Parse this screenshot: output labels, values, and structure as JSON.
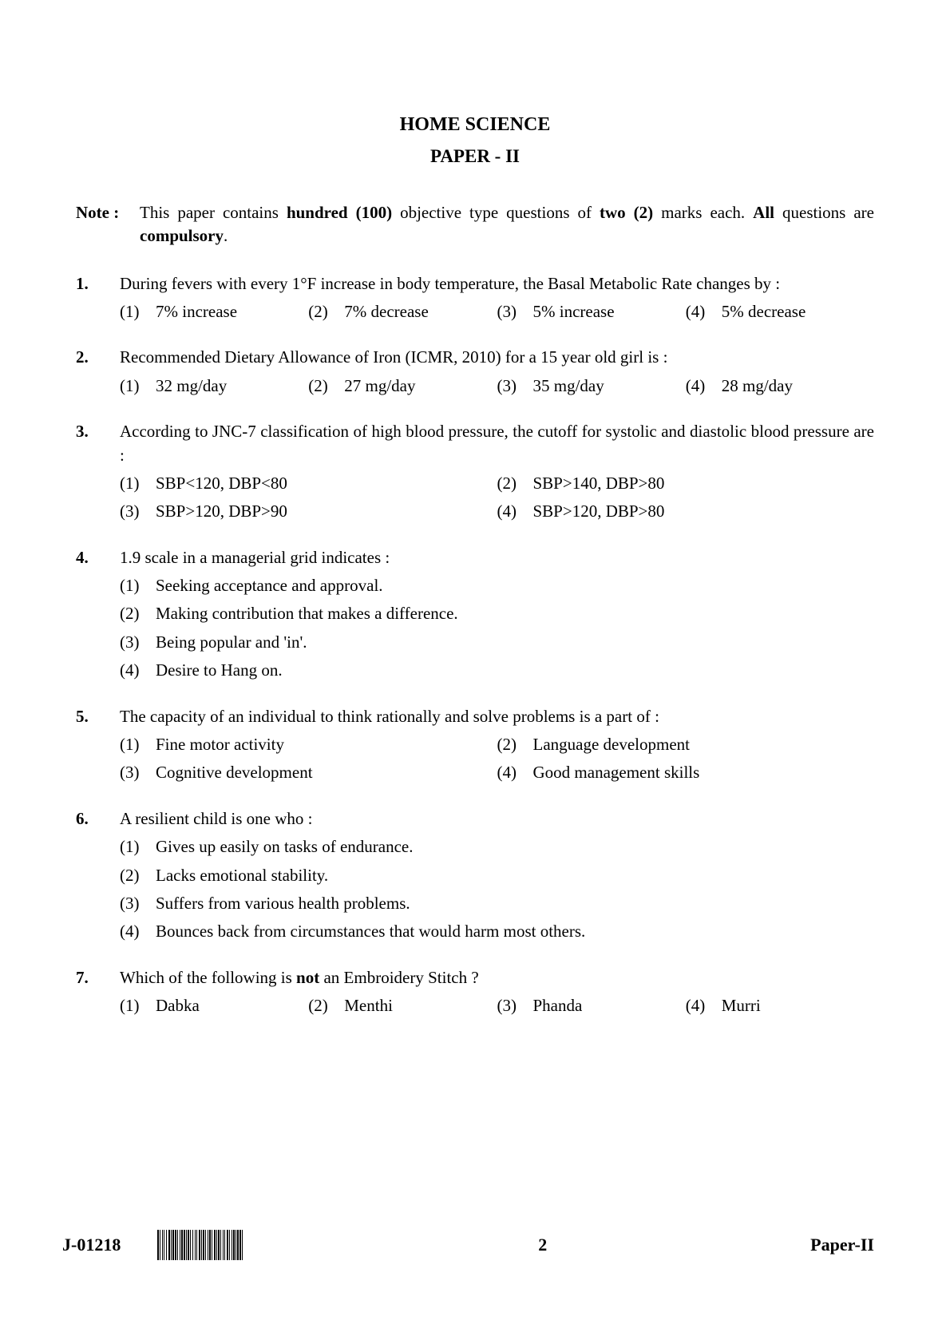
{
  "header": {
    "title": "HOME SCIENCE",
    "subtitle": "PAPER - II"
  },
  "note": {
    "label": "Note :",
    "parts": [
      {
        "text": "This paper contains ",
        "bold": false
      },
      {
        "text": "hundred (100)",
        "bold": true
      },
      {
        "text": " objective type questions of ",
        "bold": false
      },
      {
        "text": "two (2)",
        "bold": true
      },
      {
        "text": " marks each.  ",
        "bold": false
      },
      {
        "text": "All",
        "bold": true
      },
      {
        "text": " questions are ",
        "bold": false
      },
      {
        "text": "compulsory",
        "bold": true
      },
      {
        "text": ".",
        "bold": false
      }
    ]
  },
  "questions": [
    {
      "num": "1.",
      "text": "During fevers with every 1°F increase in body temperature, the Basal Metabolic Rate changes by :",
      "layout": "4col",
      "options": [
        {
          "n": "(1)",
          "t": "7% increase"
        },
        {
          "n": "(2)",
          "t": "7% decrease"
        },
        {
          "n": "(3)",
          "t": "5% increase"
        },
        {
          "n": "(4)",
          "t": "5% decrease"
        }
      ]
    },
    {
      "num": "2.",
      "text": "Recommended Dietary Allowance of Iron (ICMR, 2010) for a 15 year old girl is :",
      "layout": "4col",
      "options": [
        {
          "n": "(1)",
          "t": "32 mg/day"
        },
        {
          "n": "(2)",
          "t": "27 mg/day"
        },
        {
          "n": "(3)",
          "t": "35 mg/day"
        },
        {
          "n": "(4)",
          "t": "28 mg/day"
        }
      ]
    },
    {
      "num": "3.",
      "text": "According to JNC-7 classification of high blood pressure, the cutoff for systolic and diastolic blood pressure are :",
      "layout": "2col",
      "options": [
        {
          "n": "(1)",
          "t": "SBP<120, DBP<80"
        },
        {
          "n": "(2)",
          "t": "SBP>140, DBP>80"
        },
        {
          "n": "(3)",
          "t": "SBP>120, DBP>90"
        },
        {
          "n": "(4)",
          "t": "SBP>120, DBP>80"
        }
      ]
    },
    {
      "num": "4.",
      "text": "1.9 scale in a managerial grid indicates :",
      "layout": "vert",
      "options": [
        {
          "n": "(1)",
          "t": "Seeking acceptance and approval."
        },
        {
          "n": "(2)",
          "t": "Making contribution that makes a difference."
        },
        {
          "n": "(3)",
          "t": "Being  popular and 'in'."
        },
        {
          "n": "(4)",
          "t": "Desire to Hang on."
        }
      ]
    },
    {
      "num": "5.",
      "text": "The capacity of an individual to think rationally and solve problems is a part of :",
      "layout": "2col",
      "options": [
        {
          "n": "(1)",
          "t": "Fine motor activity"
        },
        {
          "n": "(2)",
          "t": "Language development"
        },
        {
          "n": "(3)",
          "t": "Cognitive development"
        },
        {
          "n": "(4)",
          "t": "Good management skills"
        }
      ]
    },
    {
      "num": "6.",
      "text": "A resilient child is one who :",
      "layout": "vert",
      "options": [
        {
          "n": "(1)",
          "t": "Gives up easily on tasks of endurance."
        },
        {
          "n": "(2)",
          "t": "Lacks emotional stability."
        },
        {
          "n": "(3)",
          "t": "Suffers from various health problems."
        },
        {
          "n": "(4)",
          "t": "Bounces back from circumstances that would harm most others."
        }
      ]
    },
    {
      "num": "7.",
      "text_parts": [
        {
          "text": "Which of the following is ",
          "bold": false
        },
        {
          "text": "not",
          "bold": true
        },
        {
          "text": " an Embroidery Stitch ?",
          "bold": false
        }
      ],
      "layout": "4col",
      "options": [
        {
          "n": "(1)",
          "t": "Dabka"
        },
        {
          "n": "(2)",
          "t": "Menthi"
        },
        {
          "n": "(3)",
          "t": "Phanda"
        },
        {
          "n": "(4)",
          "t": "Murri"
        }
      ]
    }
  ],
  "footer": {
    "code": "J-01218",
    "page": "2",
    "paper": "Paper-II"
  },
  "barcode_widths": [
    2,
    1,
    1,
    2,
    1,
    1,
    1,
    2,
    1,
    2,
    2,
    1,
    1,
    1,
    2,
    1,
    2,
    1,
    1,
    2,
    1,
    1,
    2,
    1,
    2,
    1,
    1,
    1,
    2,
    1,
    1,
    2,
    1,
    2,
    1,
    1,
    1,
    2,
    2,
    1,
    1,
    1,
    2,
    1,
    1,
    2,
    1,
    1,
    2,
    1,
    1,
    2,
    2,
    1,
    1,
    1,
    2,
    1,
    1,
    2,
    1,
    1,
    1,
    2,
    2,
    1,
    1,
    2,
    1,
    1,
    2,
    1,
    1,
    1,
    2,
    1,
    2,
    1,
    1,
    2
  ]
}
